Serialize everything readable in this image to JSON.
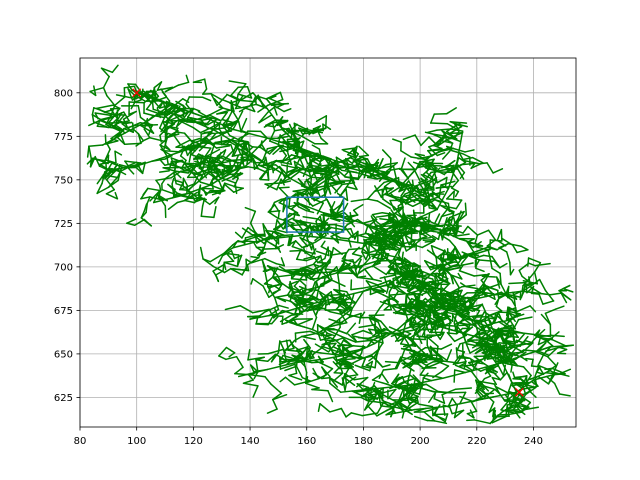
{
  "chart_data": {
    "type": "scatter",
    "title": "",
    "xlabel": "",
    "ylabel": "",
    "xlim": [
      80,
      255
    ],
    "ylim": [
      608,
      820
    ],
    "grid": true,
    "x_ticks": [
      80,
      100,
      120,
      140,
      160,
      180,
      200,
      220,
      240
    ],
    "y_ticks": [
      625,
      650,
      675,
      700,
      725,
      750,
      775,
      800
    ],
    "colors": {
      "tree": "#008000",
      "marker": "#ff0000",
      "box": "#1f77b4",
      "grid": "#b0b0b0"
    },
    "start_point": {
      "x": 100,
      "y": 800
    },
    "goal_point": {
      "x": 235,
      "y": 628
    },
    "obstacle": {
      "x0": 153,
      "x1": 173,
      "y0": 720,
      "y1": 740
    },
    "trunks": [
      [
        [
          100,
          800
        ],
        [
          112,
          793
        ],
        [
          124,
          786
        ],
        [
          134,
          779
        ],
        [
          146,
          774
        ],
        [
          158,
          768
        ],
        [
          170,
          761
        ],
        [
          182,
          756
        ],
        [
          194,
          748
        ],
        [
          203,
          739
        ],
        [
          206,
          733
        ],
        [
          198,
          727
        ],
        [
          187,
          721
        ],
        [
          182,
          713
        ],
        [
          188,
          705
        ],
        [
          195,
          697
        ],
        [
          200,
          690
        ],
        [
          205,
          684
        ],
        [
          212,
          676
        ],
        [
          220,
          668
        ],
        [
          226,
          657
        ],
        [
          229,
          645
        ],
        [
          234,
          628
        ]
      ],
      [
        [
          118,
          785
        ],
        [
          128,
          778
        ],
        [
          136,
          770
        ],
        [
          145,
          760
        ],
        [
          154,
          751
        ],
        [
          164,
          742
        ]
      ],
      [
        [
          150,
          770
        ],
        [
          162,
          765
        ],
        [
          172,
          758
        ],
        [
          182,
          754
        ],
        [
          190,
          749
        ]
      ],
      [
        [
          206,
          733
        ],
        [
          210,
          745
        ],
        [
          213,
          760
        ],
        [
          215,
          778
        ]
      ],
      [
        [
          182,
          713
        ],
        [
          170,
          716
        ],
        [
          158,
          718
        ],
        [
          146,
          716
        ],
        [
          134,
          711
        ],
        [
          126,
          703
        ]
      ],
      [
        [
          182,
          713
        ],
        [
          192,
          719
        ],
        [
          202,
          721
        ],
        [
          210,
          719
        ]
      ],
      [
        [
          195,
          697
        ],
        [
          189,
          690
        ],
        [
          180,
          686
        ],
        [
          170,
          682
        ],
        [
          160,
          678
        ],
        [
          150,
          673
        ],
        [
          140,
          670
        ]
      ],
      [
        [
          212,
          676
        ],
        [
          218,
          681
        ],
        [
          226,
          684
        ],
        [
          236,
          686
        ],
        [
          246,
          684
        ]
      ],
      [
        [
          205,
          684
        ],
        [
          199,
          674
        ],
        [
          192,
          664
        ],
        [
          184,
          656
        ],
        [
          176,
          650
        ],
        [
          166,
          647
        ],
        [
          156,
          645
        ],
        [
          146,
          641
        ],
        [
          136,
          637
        ]
      ],
      [
        [
          229,
          645
        ],
        [
          220,
          641
        ],
        [
          208,
          636
        ],
        [
          196,
          632
        ],
        [
          184,
          630
        ],
        [
          172,
          628
        ]
      ],
      [
        [
          226,
          657
        ],
        [
          215,
          662
        ],
        [
          204,
          667
        ],
        [
          195,
          675
        ],
        [
          186,
          680
        ]
      ],
      [
        [
          234,
          628
        ],
        [
          222,
          624
        ],
        [
          210,
          620
        ],
        [
          198,
          618
        ],
        [
          188,
          615
        ]
      ],
      [
        [
          203,
          739
        ],
        [
          196,
          746
        ],
        [
          188,
          752
        ],
        [
          180,
          758
        ]
      ],
      [
        [
          134,
          779
        ],
        [
          126,
          773
        ],
        [
          117,
          767
        ],
        [
          108,
          762
        ],
        [
          100,
          758
        ],
        [
          92,
          756
        ]
      ],
      [
        [
          124,
          786
        ],
        [
          115,
          791
        ],
        [
          108,
          796
        ],
        [
          100,
          801
        ]
      ],
      [
        [
          158,
          768
        ],
        [
          151,
          780
        ],
        [
          146,
          791
        ],
        [
          141,
          800
        ]
      ],
      [
        [
          194,
          748
        ],
        [
          199,
          757
        ],
        [
          204,
          764
        ],
        [
          211,
          769
        ]
      ],
      [
        [
          220,
          668
        ],
        [
          228,
          663
        ],
        [
          236,
          662
        ],
        [
          246,
          660
        ]
      ],
      [
        [
          146,
          774
        ],
        [
          140,
          764
        ],
        [
          134,
          755
        ],
        [
          126,
          747
        ],
        [
          116,
          741
        ],
        [
          106,
          737
        ]
      ],
      [
        [
          188,
          705
        ],
        [
          178,
          700
        ],
        [
          168,
          697
        ],
        [
          158,
          696
        ],
        [
          148,
          694
        ]
      ],
      [
        [
          200,
          690
        ],
        [
          206,
          699
        ],
        [
          213,
          705
        ],
        [
          222,
          710
        ]
      ],
      [
        [
          170,
          761
        ],
        [
          166,
          751
        ],
        [
          160,
          744
        ],
        [
          152,
          738
        ]
      ],
      [
        [
          229,
          645
        ],
        [
          238,
          650
        ],
        [
          246,
          654
        ],
        [
          254,
          655
        ]
      ],
      [
        [
          234,
          628
        ],
        [
          240,
          635
        ],
        [
          247,
          638
        ]
      ],
      [
        [
          187,
          721
        ],
        [
          176,
          727
        ],
        [
          166,
          731
        ],
        [
          158,
          736
        ]
      ],
      [
        [
          112,
          793
        ],
        [
          104,
          784
        ],
        [
          96,
          777
        ],
        [
          88,
          770
        ]
      ],
      [
        [
          176,
          650
        ],
        [
          170,
          658
        ],
        [
          162,
          664
        ],
        [
          154,
          668
        ]
      ],
      [
        [
          136,
          770
        ],
        [
          130,
          760
        ],
        [
          124,
          752
        ],
        [
          118,
          744
        ]
      ],
      [
        [
          198,
          727
        ],
        [
          206,
          722
        ],
        [
          214,
          716
        ],
        [
          222,
          712
        ]
      ],
      [
        [
          192,
          664
        ],
        [
          198,
          656
        ],
        [
          203,
          648
        ],
        [
          210,
          643
        ]
      ],
      [
        [
          180,
          686
        ],
        [
          176,
          676
        ],
        [
          170,
          668
        ],
        [
          164,
          662
        ]
      ]
    ]
  }
}
